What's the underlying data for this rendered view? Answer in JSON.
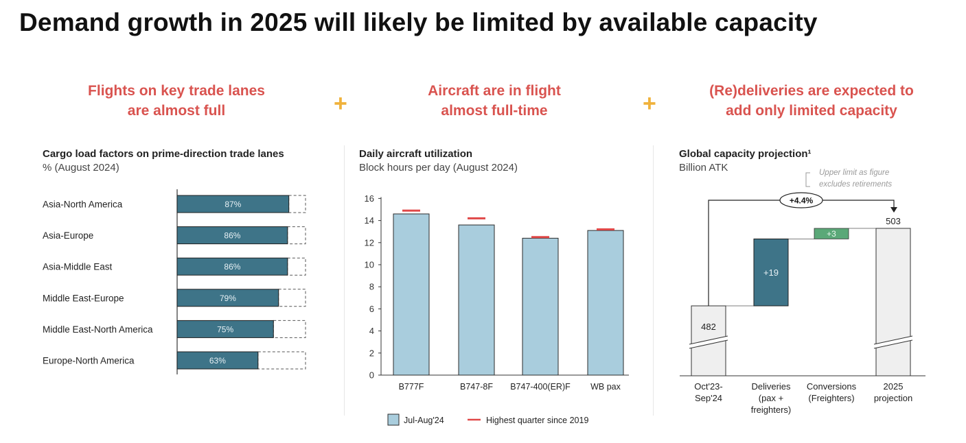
{
  "title": "Demand growth in 2025 will likely be limited by available capacity",
  "colors": {
    "headline": "#d9534f",
    "plus": "#f0b23c",
    "teal": "#3e7488",
    "light_blue": "#a9cddd",
    "highest_marker": "#e04848",
    "conversion_green": "#5aa878",
    "projection_grey": "#efefef"
  },
  "sections": [
    {
      "headline": [
        "Flights on key trade lanes",
        "are almost full"
      ]
    },
    {
      "headline": [
        "Aircraft are in flight",
        "almost full-time"
      ]
    },
    {
      "headline": [
        "(Re)deliveries are expected to",
        "add only limited capacity"
      ]
    }
  ],
  "plus_symbol": "+",
  "panels": [
    {
      "title": "Cargo load factors on prime-direction trade lanes",
      "subtitle": "% (August 2024)"
    },
    {
      "title": "Daily aircraft utilization",
      "subtitle": "Block hours per day (August 2024)"
    },
    {
      "title": "Global capacity projection¹",
      "subtitle": "Billion ATK"
    }
  ],
  "chart_data": [
    {
      "type": "bar",
      "orientation": "horizontal",
      "title": "Cargo load factors on prime-direction trade lanes",
      "subtitle": "% (August 2024)",
      "categories": [
        "Asia-North America",
        "Asia-Europe",
        "Asia-Middle East",
        "Middle East-Europe",
        "Middle East-North America",
        "Europe-North America"
      ],
      "values": [
        87,
        86,
        86,
        79,
        75,
        63
      ],
      "data_labels": [
        "87%",
        "86%",
        "86%",
        "79%",
        "75%",
        "63%"
      ],
      "xlim": [
        0,
        100
      ]
    },
    {
      "type": "bar",
      "title": "Daily aircraft utilization",
      "subtitle": "Block hours per day (August 2024)",
      "categories": [
        "B777F",
        "B747-8F",
        "B747-400(ER)F",
        "WB pax"
      ],
      "series": [
        {
          "name": "Jul-Aug'24",
          "values": [
            14.6,
            13.6,
            12.4,
            13.1
          ]
        },
        {
          "name": "Highest quarter since 2019",
          "values": [
            14.9,
            14.2,
            12.5,
            13.2
          ]
        }
      ],
      "ylim": [
        0,
        16
      ],
      "yticks": [
        "0",
        "2",
        "4",
        "6",
        "8",
        "10",
        "12",
        "14",
        "16"
      ],
      "grid": false,
      "legend": "bottom"
    },
    {
      "type": "bar",
      "variant": "waterfall",
      "title": "Global capacity projection¹",
      "subtitle": "Billion ATK",
      "categories": [
        [
          "Oct'23-",
          "Sep'24"
        ],
        [
          "Deliveries",
          "(pax +",
          "freighters)"
        ],
        [
          "Conversions",
          "(Freighters)"
        ],
        [
          "2025",
          "projection"
        ]
      ],
      "values": [
        482,
        19,
        3,
        503
      ],
      "data_labels": [
        "482",
        "+19",
        "+3",
        "503"
      ],
      "annotations": {
        "growth": "+4.4%",
        "note": [
          "Upper limit as figure",
          "excludes retirements"
        ]
      }
    }
  ]
}
